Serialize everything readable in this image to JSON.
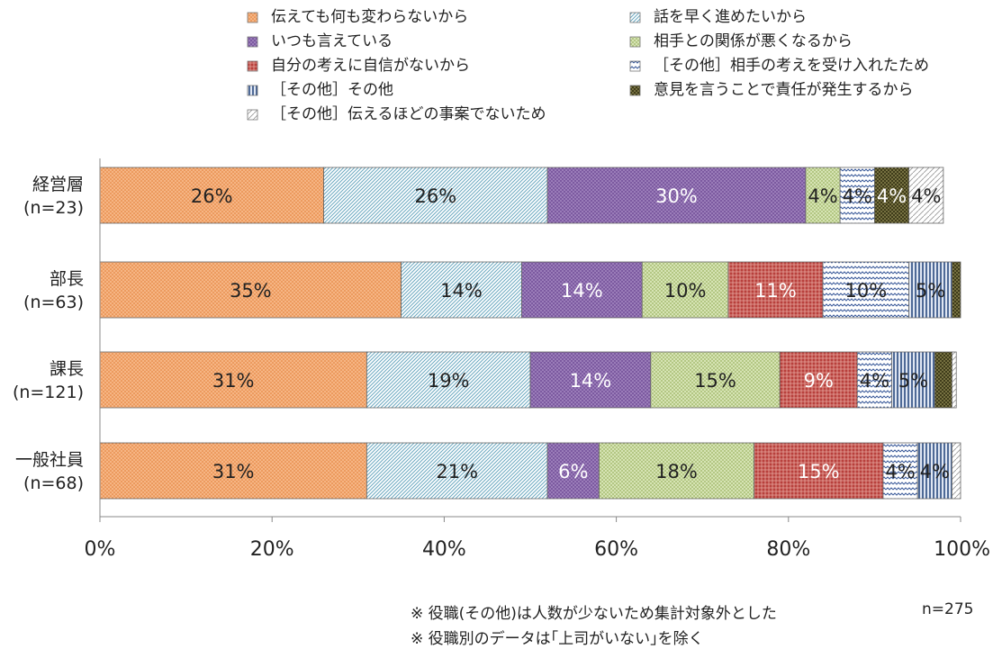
{
  "chart_data": {
    "type": "bar",
    "orientation": "horizontal",
    "stacked": true,
    "percent_stacked": true,
    "categories": [
      {
        "name": "経営層",
        "n": "(n=23)"
      },
      {
        "name": "部長",
        "n": "(n=63)"
      },
      {
        "name": "課長",
        "n": "(n=121)"
      },
      {
        "name": "一般社員",
        "n": "(n=68)"
      }
    ],
    "series": [
      {
        "name": "伝えても何も変わらないから",
        "color": "#f4a66a",
        "pattern": "dots-orange",
        "label_color": "#222222",
        "values": [
          26,
          35,
          31,
          31
        ],
        "labels": [
          "26%",
          "35%",
          "31%",
          "31%"
        ]
      },
      {
        "name": "話を早く進めたいから",
        "color": "#a9d4e0",
        "pattern": "diagonal-blue",
        "label_color": "#222222",
        "values": [
          26,
          14,
          19,
          21
        ],
        "labels": [
          "26%",
          "14%",
          "19%",
          "21%"
        ]
      },
      {
        "name": "いつも言えている",
        "color": "#8a6aaa",
        "pattern": "dots-purple",
        "label_color": "#ffffff",
        "values": [
          30,
          14,
          14,
          6
        ],
        "labels": [
          "30%",
          "14%",
          "14%",
          "6%"
        ]
      },
      {
        "name": "相手との関係が悪くなるから",
        "color": "#c8d9a0",
        "pattern": "dots-green",
        "label_color": "#222222",
        "values": [
          4,
          10,
          15,
          18
        ],
        "labels": [
          "4%",
          "10%",
          "15%",
          "18%"
        ]
      },
      {
        "name": "自分の考えに自信がないから",
        "color": "#c0504d",
        "pattern": "grid-red",
        "label_color": "#ffffff",
        "values": [
          0,
          11,
          9,
          15
        ],
        "labels": [
          "",
          "11%",
          "9%",
          "15%"
        ]
      },
      {
        "name": "［その他］相手の考えを受け入れたため",
        "color": "#4f6fa8",
        "pattern": "zigzag-blue",
        "label_color": "#222222",
        "values": [
          4,
          10,
          4,
          4
        ],
        "labels": [
          "4%",
          "10%",
          "4%",
          "4%"
        ]
      },
      {
        "name": "［その他］その他",
        "color": "#3a5a8c",
        "pattern": "vertical-navy",
        "label_color": "#222222",
        "values": [
          0,
          5,
          5,
          4
        ],
        "labels": [
          "",
          "5%",
          "5%",
          "4%"
        ]
      },
      {
        "name": "意見を言うことで責任が発生するから",
        "color": "#4d4a22",
        "pattern": "dots-olive",
        "label_color": "#ffffff",
        "values": [
          4,
          1,
          2,
          0
        ],
        "labels": [
          "4%",
          "",
          "",
          ""
        ]
      },
      {
        "name": "［その他］伝えるほどの事案でないため",
        "color": "#9a9a9a",
        "pattern": "diag-grey",
        "label_color": "#222222",
        "values": [
          4,
          0,
          0.5,
          1
        ],
        "labels": [
          "4%",
          "",
          "",
          ""
        ]
      }
    ],
    "xlim": [
      0,
      100
    ],
    "xticks": [
      "0%",
      "20%",
      "40%",
      "60%",
      "80%",
      "100%"
    ],
    "xlabel": "",
    "ylabel": "",
    "grid": false,
    "legend_position": "top"
  },
  "notes": {
    "line1": "※ 役職(その他)は人数が少ないため集計対象外とした",
    "line2": "※ 役職別のデータは｢上司がいない｣を除く",
    "total": "n=275"
  }
}
